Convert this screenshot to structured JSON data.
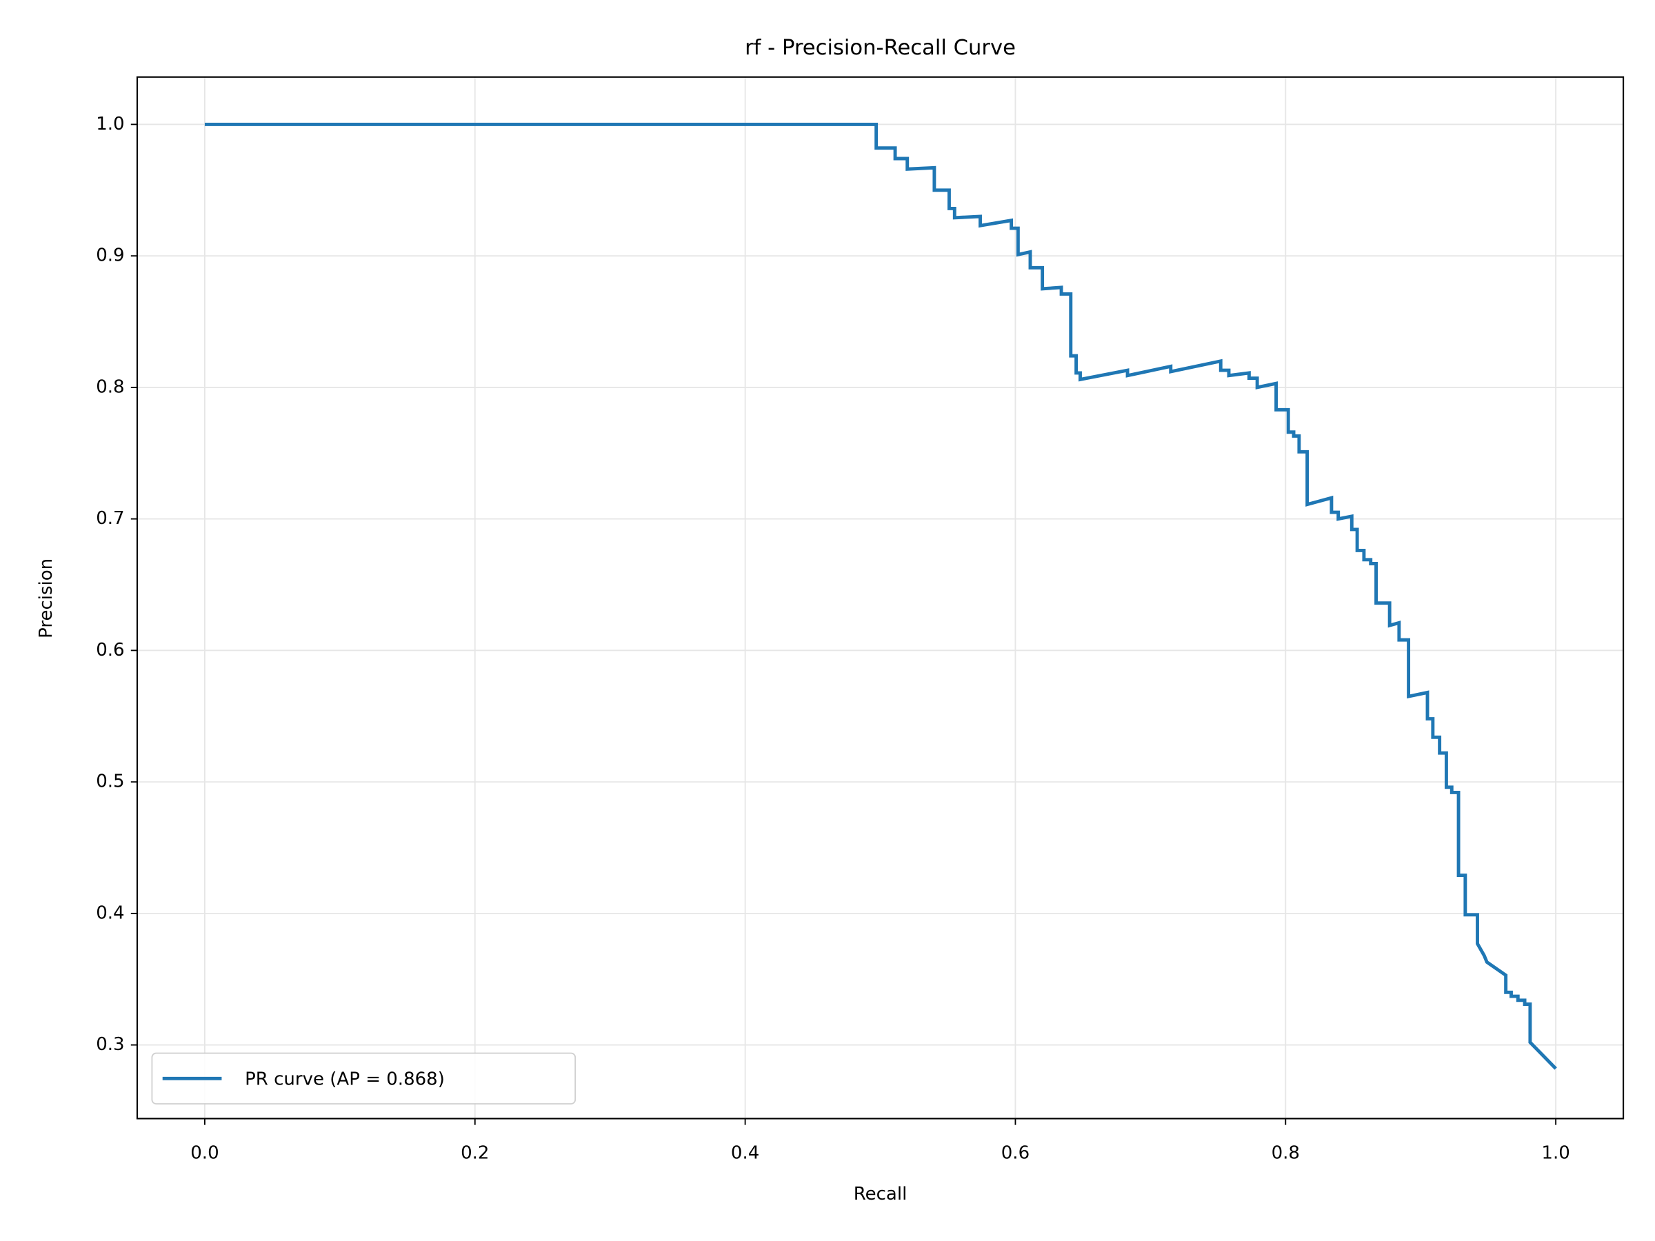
{
  "chart_data": {
    "type": "line",
    "title": "rf - Precision-Recall Curve",
    "x_label": "Recall",
    "y_label": "Precision",
    "xlim": [
      -0.05,
      1.05
    ],
    "ylim": [
      0.244,
      1.036
    ],
    "xticks": [
      {
        "value": 0,
        "label": "0.0"
      },
      0.2,
      0.4,
      0.6,
      0.8,
      {
        "value": 1,
        "label": "1.0"
      }
    ],
    "yticks": [
      0.3,
      0.4,
      0.5,
      0.6,
      0.7,
      0.8,
      0.9,
      {
        "value": 1,
        "label": "1.0"
      }
    ],
    "grid": true,
    "legend": "lower left",
    "series": [
      {
        "name": "PR curve (AP = 0.868)",
        "color": "#1f77b4",
        "x": [
          0,
          0.497,
          0.497,
          0.511,
          0.511,
          0.52,
          0.52,
          0.54,
          0.54,
          0.551,
          0.551,
          0.555,
          0.555,
          0.574,
          0.574,
          0.597,
          0.597,
          0.602,
          0.602,
          0.611,
          0.611,
          0.62,
          0.62,
          0.634,
          0.634,
          0.641,
          0.641,
          0.645,
          0.645,
          0.648,
          0.648,
          0.683,
          0.683,
          0.715,
          0.715,
          0.752,
          0.752,
          0.758,
          0.758,
          0.773,
          0.773,
          0.779,
          0.779,
          0.793,
          0.793,
          0.802,
          0.802,
          0.806,
          0.806,
          0.81,
          0.81,
          0.816,
          0.816,
          0.834,
          0.834,
          0.839,
          0.839,
          0.849,
          0.849,
          0.853,
          0.853,
          0.858,
          0.858,
          0.863,
          0.863,
          0.867,
          0.867,
          0.877,
          0.877,
          0.884,
          0.884,
          0.891,
          0.891,
          0.905,
          0.905,
          0.909,
          0.909,
          0.914,
          0.914,
          0.919,
          0.919,
          0.923,
          0.923,
          0.928,
          0.928,
          0.933,
          0.933,
          0.942,
          0.942,
          0.947,
          0.949,
          0.963,
          0.963,
          0.967,
          0.967,
          0.972,
          0.972,
          0.977,
          0.977,
          0.981,
          0.981,
          1.0
        ],
        "values": [
          1,
          1,
          0.982,
          0.982,
          0.974,
          0.974,
          0.966,
          0.967,
          0.95,
          0.95,
          0.936,
          0.936,
          0.929,
          0.93,
          0.923,
          0.927,
          0.921,
          0.921,
          0.901,
          0.903,
          0.891,
          0.891,
          0.875,
          0.876,
          0.871,
          0.871,
          0.824,
          0.824,
          0.811,
          0.811,
          0.806,
          0.813,
          0.809,
          0.816,
          0.812,
          0.82,
          0.813,
          0.813,
          0.809,
          0.811,
          0.807,
          0.807,
          0.8,
          0.803,
          0.783,
          0.783,
          0.766,
          0.766,
          0.763,
          0.763,
          0.751,
          0.751,
          0.711,
          0.716,
          0.705,
          0.705,
          0.7,
          0.702,
          0.692,
          0.692,
          0.676,
          0.676,
          0.669,
          0.669,
          0.666,
          0.666,
          0.636,
          0.636,
          0.619,
          0.621,
          0.608,
          0.608,
          0.565,
          0.568,
          0.548,
          0.548,
          0.534,
          0.534,
          0.522,
          0.522,
          0.496,
          0.496,
          0.492,
          0.492,
          0.429,
          0.429,
          0.399,
          0.399,
          0.377,
          0.368,
          0.363,
          0.353,
          0.34,
          0.34,
          0.337,
          0.337,
          0.334,
          0.334,
          0.331,
          0.331,
          0.302,
          0.282
        ]
      }
    ]
  }
}
